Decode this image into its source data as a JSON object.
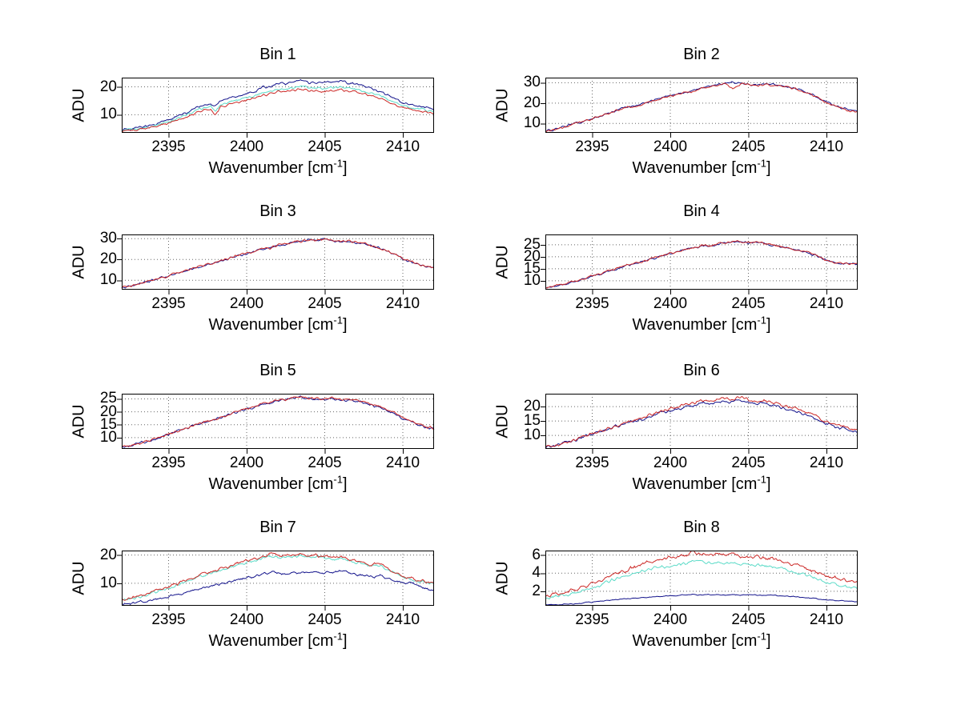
{
  "figure": {
    "background": "#ffffff",
    "description": "MATLAB-style figure with 8 spectral subplots arranged 4 rows by 2 columns"
  },
  "colors": {
    "dark_blue": "#14148c",
    "cyan": "#5cdbc8",
    "red": "#cc2a28",
    "grid": "#666666",
    "axis": "#000000",
    "text": "#000000"
  },
  "x_control": [
    2392,
    2393,
    2394,
    2395,
    2396,
    2397,
    2397.7,
    2398,
    2398.3,
    2399,
    2400,
    2400.5,
    2401,
    2401.5,
    2402,
    2402.5,
    2403,
    2403.5,
    2404,
    2404.5,
    2405,
    2405.5,
    2406,
    2406.5,
    2407,
    2407.5,
    2408,
    2408.5,
    2409,
    2409.5,
    2410,
    2410.5,
    2411,
    2411.5,
    2412
  ],
  "chart_data": [
    {
      "type": "line",
      "title": "Bin 1",
      "ylabel": "ADU",
      "xlabel": {
        "base": "Wavenumber [cm",
        "sup": "-1",
        "close": "]"
      },
      "xlim": [
        2392,
        2412
      ],
      "ylim": [
        3.5,
        23.3
      ],
      "xticks": [
        2395,
        2400,
        2405,
        2410
      ],
      "yticks": [
        10,
        20
      ],
      "grid": true,
      "series": [
        {
          "name": "dark blue",
          "color_key": "dark_blue",
          "noise": 0.35,
          "y": [
            4.5,
            5.3,
            6.5,
            8.2,
            10.3,
            13.0,
            14.0,
            13.2,
            14.8,
            16.3,
            17.5,
            18.3,
            19.8,
            20.3,
            21.2,
            21.0,
            21.8,
            22.3,
            21.6,
            21.4,
            21.5,
            21.8,
            22.2,
            21.6,
            21.0,
            20.3,
            19.5,
            18.4,
            17.0,
            15.6,
            14.4,
            13.6,
            13.0,
            12.6,
            11.8
          ]
        },
        {
          "name": "cyan",
          "color_key": "cyan",
          "noise": 0.3,
          "y": [
            4.2,
            4.9,
            6.0,
            7.6,
            9.5,
            12.0,
            12.9,
            11.2,
            13.5,
            14.9,
            16.0,
            16.8,
            18.0,
            18.5,
            19.3,
            19.1,
            19.8,
            20.2,
            19.6,
            19.4,
            19.5,
            19.8,
            20.0,
            19.6,
            19.1,
            18.5,
            17.8,
            16.8,
            15.6,
            14.4,
            13.3,
            12.6,
            12.1,
            11.7,
            11.1
          ]
        },
        {
          "name": "red",
          "color_key": "red",
          "noise": 0.3,
          "y": [
            4.0,
            4.6,
            5.6,
            7.1,
            8.9,
            11.3,
            12.1,
            10.0,
            12.7,
            14.0,
            15.1,
            15.9,
            17.0,
            17.5,
            18.3,
            18.1,
            18.7,
            19.1,
            18.5,
            18.3,
            18.4,
            18.7,
            18.9,
            18.5,
            18.0,
            17.5,
            16.8,
            15.9,
            14.7,
            13.6,
            12.5,
            11.9,
            11.4,
            11.0,
            10.4
          ]
        }
      ]
    },
    {
      "type": "line",
      "title": "Bin 2",
      "ylabel": "ADU",
      "xlabel": {
        "base": "Wavenumber [cm",
        "sup": "-1",
        "close": "]"
      },
      "xlim": [
        2392,
        2412
      ],
      "ylim": [
        5.4,
        32.5
      ],
      "xticks": [
        2395,
        2400,
        2405,
        2410
      ],
      "yticks": [
        10,
        20,
        30
      ],
      "grid": true,
      "series": [
        {
          "name": "dark blue",
          "color_key": "dark_blue",
          "noise": 0.4,
          "y": [
            6.2,
            8.0,
            10.2,
            12.4,
            15.0,
            17.6,
            18.7,
            19.1,
            19.9,
            21.6,
            23.6,
            24.4,
            25.6,
            26.1,
            27.6,
            28.1,
            29.1,
            29.6,
            30.2,
            29.7,
            29.1,
            28.9,
            29.3,
            29.1,
            28.7,
            28.1,
            27.1,
            25.9,
            24.4,
            22.7,
            20.5,
            19.1,
            17.6,
            16.3,
            15.9
          ]
        },
        {
          "name": "red",
          "color_key": "red",
          "noise": 0.4,
          "y": [
            6.1,
            7.8,
            10.0,
            12.2,
            14.8,
            17.4,
            18.5,
            18.9,
            19.7,
            21.4,
            23.4,
            24.2,
            25.4,
            25.9,
            27.4,
            27.9,
            28.9,
            29.4,
            27.0,
            29.4,
            28.9,
            28.7,
            29.1,
            28.9,
            28.5,
            27.9,
            26.9,
            25.7,
            24.2,
            22.5,
            20.3,
            18.9,
            17.4,
            16.1,
            15.7
          ]
        }
      ]
    },
    {
      "type": "line",
      "title": "Bin 3",
      "ylabel": "ADU",
      "xlabel": {
        "base": "Wavenumber [cm",
        "sup": "-1",
        "close": "]"
      },
      "xlim": [
        2392,
        2412
      ],
      "ylim": [
        5.5,
        32.0
      ],
      "xticks": [
        2395,
        2400,
        2405,
        2410
      ],
      "yticks": [
        10,
        20,
        30
      ],
      "grid": true,
      "series": [
        {
          "name": "dark blue",
          "color_key": "dark_blue",
          "noise": 0.4,
          "y": [
            6.4,
            7.9,
            10.0,
            12.1,
            14.4,
            16.7,
            17.9,
            18.3,
            19.1,
            20.9,
            22.9,
            23.7,
            24.9,
            25.5,
            26.9,
            27.4,
            28.4,
            28.9,
            29.4,
            29.1,
            29.9,
            28.9,
            28.4,
            28.7,
            28.1,
            27.5,
            26.5,
            25.3,
            23.9,
            22.3,
            20.1,
            18.9,
            17.5,
            16.6,
            16.1
          ]
        },
        {
          "name": "red",
          "color_key": "red",
          "noise": 0.4,
          "y": [
            6.5,
            8.0,
            10.1,
            12.2,
            14.5,
            16.8,
            18.0,
            18.4,
            19.2,
            21.0,
            23.0,
            23.8,
            25.0,
            25.6,
            27.0,
            27.5,
            28.5,
            29.0,
            29.5,
            29.2,
            30.0,
            29.0,
            28.5,
            28.8,
            28.2,
            27.6,
            26.6,
            25.4,
            24.0,
            22.4,
            20.2,
            19.0,
            17.6,
            16.7,
            16.2
          ]
        }
      ]
    },
    {
      "type": "line",
      "title": "Bin 4",
      "ylabel": "ADU",
      "xlabel": {
        "base": "Wavenumber [cm",
        "sup": "-1",
        "close": "]"
      },
      "xlim": [
        2392,
        2412
      ],
      "ylim": [
        6.3,
        29.3
      ],
      "xticks": [
        2395,
        2400,
        2405,
        2410
      ],
      "yticks": [
        10,
        15,
        20,
        25
      ],
      "grid": true,
      "series": [
        {
          "name": "dark blue",
          "color_key": "dark_blue",
          "noise": 0.35,
          "y": [
            7.0,
            8.3,
            10.0,
            11.9,
            13.9,
            16.1,
            17.1,
            17.5,
            18.1,
            19.7,
            21.4,
            22.2,
            23.2,
            23.7,
            24.7,
            24.3,
            25.2,
            25.7,
            26.4,
            26.1,
            25.9,
            26.2,
            25.5,
            24.9,
            24.2,
            23.5,
            22.9,
            22.1,
            21.2,
            20.1,
            18.7,
            17.7,
            17.1,
            16.9,
            17.1
          ]
        },
        {
          "name": "red",
          "color_key": "red",
          "noise": 0.35,
          "y": [
            7.1,
            8.4,
            10.1,
            12.0,
            14.0,
            16.2,
            17.2,
            17.6,
            18.2,
            19.8,
            21.5,
            22.3,
            23.3,
            23.8,
            24.8,
            24.4,
            25.3,
            25.8,
            26.5,
            26.2,
            26.0,
            26.3,
            25.6,
            25.0,
            24.3,
            23.6,
            23.0,
            22.2,
            21.3,
            20.2,
            18.8,
            17.8,
            17.2,
            17.0,
            17.2
          ]
        }
      ]
    },
    {
      "type": "line",
      "title": "Bin 5",
      "ylabel": "ADU",
      "xlabel": {
        "base": "Wavenumber [cm",
        "sup": "-1",
        "close": "]"
      },
      "xlim": [
        2392,
        2412
      ],
      "ylim": [
        5.6,
        27.0
      ],
      "xticks": [
        2395,
        2400,
        2405,
        2410
      ],
      "yticks": [
        10,
        15,
        20,
        25
      ],
      "grid": true,
      "series": [
        {
          "name": "dark blue",
          "color_key": "dark_blue",
          "noise": 0.35,
          "y": [
            6.2,
            7.5,
            9.3,
            11.2,
            13.2,
            15.4,
            16.5,
            16.9,
            17.6,
            19.2,
            21.0,
            21.8,
            22.8,
            23.3,
            24.4,
            24.7,
            25.3,
            25.5,
            25.1,
            24.9,
            24.7,
            25.0,
            24.5,
            24.6,
            24.1,
            23.5,
            22.7,
            21.7,
            20.5,
            19.1,
            17.5,
            16.2,
            15.0,
            14.0,
            13.3
          ]
        },
        {
          "name": "red",
          "color_key": "red",
          "noise": 0.35,
          "y": [
            6.3,
            7.6,
            9.4,
            11.3,
            13.3,
            15.6,
            16.7,
            17.1,
            17.8,
            19.4,
            21.2,
            22.0,
            23.0,
            23.5,
            24.6,
            24.9,
            25.5,
            25.8,
            25.4,
            25.2,
            25.0,
            25.3,
            24.8,
            24.9,
            24.4,
            23.8,
            23.0,
            22.0,
            20.8,
            19.4,
            17.8,
            16.5,
            15.3,
            14.3,
            13.6
          ]
        }
      ]
    },
    {
      "type": "line",
      "title": "Bin 6",
      "ylabel": "ADU",
      "xlabel": {
        "base": "Wavenumber [cm",
        "sup": "-1",
        "close": "]"
      },
      "xlim": [
        2392,
        2412
      ],
      "ylim": [
        5.3,
        24.5
      ],
      "xticks": [
        2395,
        2400,
        2405,
        2410
      ],
      "yticks": [
        10,
        15,
        20
      ],
      "grid": true,
      "series": [
        {
          "name": "dark blue",
          "color_key": "dark_blue",
          "noise": 0.4,
          "y": [
            5.8,
            7.0,
            8.6,
            10.4,
            12.2,
            14.0,
            15.0,
            15.4,
            15.9,
            17.2,
            18.6,
            19.1,
            19.9,
            20.4,
            21.1,
            20.9,
            21.6,
            22.1,
            21.5,
            22.3,
            21.3,
            20.9,
            21.2,
            20.5,
            19.8,
            19.1,
            18.3,
            17.4,
            16.3,
            15.2,
            13.9,
            13.0,
            12.3,
            11.7,
            11.1
          ]
        },
        {
          "name": "red",
          "color_key": "red",
          "noise": 0.4,
          "y": [
            5.9,
            7.2,
            8.8,
            10.6,
            12.4,
            14.3,
            15.3,
            15.7,
            16.3,
            17.7,
            19.3,
            19.9,
            20.8,
            21.3,
            22.1,
            21.9,
            22.6,
            23.1,
            22.5,
            23.3,
            22.3,
            21.9,
            22.2,
            21.5,
            20.8,
            20.1,
            19.3,
            18.4,
            17.3,
            16.1,
            14.7,
            13.7,
            13.0,
            12.4,
            11.8
          ]
        }
      ]
    },
    {
      "type": "line",
      "title": "Bin 7",
      "ylabel": "ADU",
      "xlabel": {
        "base": "Wavenumber [cm",
        "sup": "-1",
        "close": "]"
      },
      "xlim": [
        2392,
        2412
      ],
      "ylim": [
        2.0,
        21.6
      ],
      "xticks": [
        2395,
        2400,
        2405,
        2410
      ],
      "yticks": [
        10,
        20
      ],
      "grid": true,
      "series": [
        {
          "name": "dark blue",
          "color_key": "dark_blue",
          "noise": 0.35,
          "y": [
            2.4,
            3.1,
            4.1,
            5.3,
            6.7,
            8.2,
            8.9,
            9.2,
            9.7,
            10.8,
            12.0,
            12.5,
            13.2,
            13.8,
            13.4,
            13.2,
            13.6,
            13.9,
            13.6,
            14.0,
            13.7,
            13.9,
            14.2,
            13.8,
            13.3,
            12.8,
            12.4,
            12.6,
            11.6,
            10.8,
            9.8,
            10.4,
            9.2,
            8.0,
            7.0
          ]
        },
        {
          "name": "cyan",
          "color_key": "cyan",
          "noise": 0.35,
          "y": [
            3.9,
            5.0,
            6.6,
            8.3,
            10.3,
            12.5,
            13.5,
            13.9,
            14.5,
            15.9,
            17.4,
            18.0,
            18.9,
            19.8,
            19.3,
            19.0,
            19.4,
            19.7,
            19.1,
            19.4,
            18.9,
            18.5,
            18.7,
            18.1,
            17.5,
            16.9,
            16.0,
            16.3,
            14.8,
            13.6,
            12.2,
            11.3,
            10.7,
            10.1,
            9.6
          ]
        },
        {
          "name": "red",
          "color_key": "red",
          "noise": 0.4,
          "y": [
            4.1,
            5.3,
            6.9,
            8.7,
            10.7,
            12.9,
            13.9,
            14.3,
            15.0,
            16.4,
            17.9,
            18.5,
            19.4,
            20.4,
            19.9,
            19.6,
            20.0,
            20.3,
            19.7,
            20.0,
            19.4,
            19.0,
            19.3,
            18.6,
            18.0,
            17.4,
            16.5,
            16.9,
            15.3,
            14.1,
            12.7,
            11.7,
            11.1,
            10.5,
            10.0
          ]
        }
      ]
    },
    {
      "type": "line",
      "title": "Bin 8",
      "ylabel": "ADU",
      "xlabel": {
        "base": "Wavenumber [cm",
        "sup": "-1",
        "close": "]"
      },
      "xlim": [
        2392,
        2412
      ],
      "ylim": [
        0.4,
        6.5
      ],
      "xticks": [
        2395,
        2400,
        2405,
        2410
      ],
      "yticks": [
        2,
        4,
        6
      ],
      "grid": true,
      "series": [
        {
          "name": "dark blue",
          "color_key": "dark_blue",
          "noise": 0.04,
          "y": [
            0.5,
            0.55,
            0.65,
            0.8,
            1.0,
            1.15,
            1.2,
            1.25,
            1.3,
            1.4,
            1.5,
            1.55,
            1.6,
            1.65,
            1.6,
            1.62,
            1.65,
            1.6,
            1.63,
            1.6,
            1.58,
            1.6,
            1.55,
            1.55,
            1.5,
            1.45,
            1.4,
            1.3,
            1.25,
            1.15,
            1.05,
            1.0,
            0.95,
            0.9,
            0.85
          ]
        },
        {
          "name": "cyan",
          "color_key": "cyan",
          "noise": 0.13,
          "y": [
            1.25,
            1.5,
            1.9,
            2.4,
            3.0,
            3.6,
            3.9,
            4.1,
            4.3,
            4.6,
            4.8,
            4.9,
            5.1,
            5.4,
            5.2,
            5.1,
            5.2,
            5.1,
            5.2,
            5.0,
            4.9,
            5.0,
            4.8,
            4.8,
            4.6,
            4.4,
            4.1,
            3.9,
            3.6,
            3.3,
            3.0,
            2.8,
            2.6,
            2.5,
            2.4
          ]
        },
        {
          "name": "red",
          "color_key": "red",
          "noise": 0.15,
          "y": [
            1.45,
            1.8,
            2.3,
            2.9,
            3.5,
            4.2,
            4.6,
            4.8,
            5.0,
            5.4,
            5.7,
            5.8,
            6.0,
            6.3,
            6.1,
            6.0,
            6.2,
            6.0,
            6.1,
            5.9,
            5.8,
            5.9,
            5.6,
            5.7,
            5.4,
            5.2,
            4.9,
            4.6,
            4.3,
            4.0,
            3.7,
            3.5,
            3.3,
            3.1,
            3.0
          ]
        }
      ]
    }
  ]
}
